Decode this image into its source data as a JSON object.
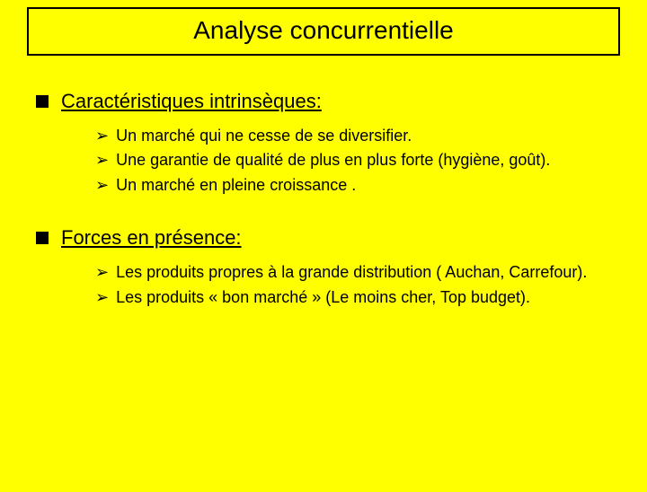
{
  "slide": {
    "title": "Analyse concurrentielle",
    "background_color": "#ffff00",
    "title_border_color": "#000000",
    "title_fontsize": 28,
    "heading_fontsize": 22,
    "body_fontsize": 18,
    "text_color": "#000000",
    "sections": [
      {
        "heading": "Caractéristiques intrinsèques:",
        "items": [
          "Un marché qui ne cesse de se diversifier.",
          "Une garantie de qualité de plus en plus forte (hygiène, goût).",
          "Un marché en pleine croissance ."
        ]
      },
      {
        "heading": "Forces en présence:",
        "items": [
          "Les produits propres à la grande distribution ( Auchan, Carrefour).",
          "Les produits « bon marché » (Le moins cher, Top budget)."
        ]
      }
    ]
  }
}
